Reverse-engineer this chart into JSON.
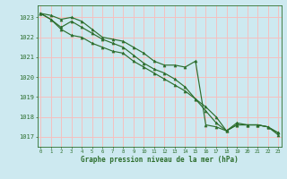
{
  "x": [
    0,
    1,
    2,
    3,
    4,
    5,
    6,
    7,
    8,
    9,
    10,
    11,
    12,
    13,
    14,
    15,
    16,
    17,
    18,
    19,
    20,
    21,
    22,
    23
  ],
  "series1": [
    1023.2,
    1023.1,
    1022.9,
    1023.0,
    1022.8,
    1022.4,
    1022.0,
    1021.9,
    1021.8,
    1021.5,
    1021.2,
    1020.8,
    1020.6,
    1020.6,
    1020.5,
    1020.8,
    1017.6,
    1017.5,
    1017.3,
    1017.7,
    1017.6,
    1017.6,
    1017.5,
    1017.1
  ],
  "series2": [
    1023.2,
    1022.9,
    1022.4,
    1022.1,
    1022.0,
    1021.7,
    1021.5,
    1021.3,
    1021.2,
    1020.8,
    1020.5,
    1020.2,
    1019.9,
    1019.6,
    1019.3,
    1018.9,
    1018.5,
    1018.0,
    1017.3,
    1017.6,
    1017.6,
    1017.6,
    1017.5,
    1017.2
  ],
  "series3": [
    1023.2,
    1022.9,
    1022.5,
    1022.8,
    1022.5,
    1022.2,
    1021.9,
    1021.7,
    1021.5,
    1021.1,
    1020.7,
    1020.4,
    1020.2,
    1019.9,
    1019.5,
    1018.9,
    1018.3,
    1017.7,
    1017.3,
    1017.6,
    1017.6,
    1017.6,
    1017.5,
    1017.2
  ],
  "bg_color": "#cde9f0",
  "grid_color": "#f5c0c0",
  "line_color": "#2d6e2d",
  "marker_color": "#2d6e2d",
  "tick_color": "#2d6e2d",
  "label_color": "#2d6e2d",
  "xlabel": "Graphe pression niveau de la mer (hPa)",
  "ylim": [
    1016.5,
    1023.6
  ],
  "yticks": [
    1017,
    1018,
    1019,
    1020,
    1021,
    1022,
    1023
  ],
  "xticks": [
    0,
    1,
    2,
    3,
    4,
    5,
    6,
    7,
    8,
    9,
    10,
    11,
    12,
    13,
    14,
    15,
    16,
    17,
    18,
    19,
    20,
    21,
    22,
    23
  ]
}
